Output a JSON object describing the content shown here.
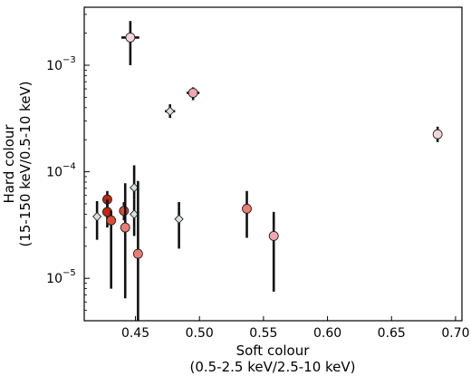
{
  "chart_data": {
    "type": "scatter",
    "title": "",
    "xlabel_lines": [
      "Soft colour",
      "(0.5-2.5 keV/2.5-10 keV)"
    ],
    "ylabel_lines": [
      "Hard colour",
      "(15-150 keV/0.5-10 keV)"
    ],
    "xlim": [
      0.41,
      0.705
    ],
    "ylim": [
      4e-06,
      0.0035
    ],
    "yscale": "log",
    "grid": false,
    "legend": "none",
    "x_ticks": [
      {
        "value": 0.45,
        "label": "0.45"
      },
      {
        "value": 0.5,
        "label": "0.50"
      },
      {
        "value": 0.55,
        "label": "0.55"
      },
      {
        "value": 0.6,
        "label": "0.60"
      },
      {
        "value": 0.65,
        "label": "0.65"
      },
      {
        "value": 0.7,
        "label": "0.70"
      }
    ],
    "y_ticks": [
      {
        "value": 1e-05,
        "label": "10",
        "exp": "−5"
      },
      {
        "value": 0.0001,
        "label": "10",
        "exp": "−4"
      },
      {
        "value": 0.001,
        "label": "10",
        "exp": "−3"
      }
    ],
    "colors": {
      "light_pink": "#f6d4dc",
      "pink": "#f1a7b1",
      "salmon": "#ec7b74",
      "red": "#df4b33",
      "dark_red": "#c4250f",
      "pale_green": "#d4e2dc",
      "error_bar": "#111111",
      "marker_edge": "#222222"
    },
    "points": [
      {
        "x": 0.446,
        "y": 0.00182,
        "ylo": 0.001,
        "yhi": 0.0026,
        "xlo": 0.439,
        "xhi": 0.453,
        "color": "light_pink",
        "marker": "circle"
      },
      {
        "x": 0.495,
        "y": 0.00055,
        "ylo": 0.00047,
        "yhi": 0.00062,
        "xlo": 0.49,
        "xhi": 0.5,
        "color": "pink",
        "marker": "circle"
      },
      {
        "x": 0.477,
        "y": 0.00037,
        "ylo": 0.00032,
        "yhi": 0.00043,
        "xlo": 0.473,
        "xhi": 0.481,
        "color": "pale_green",
        "marker": "diamond"
      },
      {
        "x": 0.686,
        "y": 0.000225,
        "ylo": 0.00019,
        "yhi": 0.000265,
        "color": "light_pink",
        "marker": "circle"
      },
      {
        "x": 0.428,
        "y": 5.5e-05,
        "ylo": 4.3e-05,
        "yhi": 6.6e-05,
        "color": "dark_red",
        "marker": "circle"
      },
      {
        "x": 0.428,
        "y": 4.2e-05,
        "ylo": 3e-05,
        "yhi": 5.5e-05,
        "color": "dark_red",
        "marker": "circle"
      },
      {
        "x": 0.431,
        "y": 3.5e-05,
        "ylo": 8e-06,
        "yhi": 4.3e-05,
        "color": "red",
        "marker": "circle"
      },
      {
        "x": 0.42,
        "y": 3.8e-05,
        "ylo": 2.3e-05,
        "yhi": 5.3e-05,
        "color": "pale_green",
        "marker": "diamond"
      },
      {
        "x": 0.441,
        "y": 4.3e-05,
        "ylo": 3.5e-05,
        "yhi": 5.2e-05,
        "color": "red",
        "marker": "circle"
      },
      {
        "x": 0.442,
        "y": 3e-05,
        "ylo": 6.5e-06,
        "yhi": 7.8e-05,
        "color": "salmon",
        "marker": "circle"
      },
      {
        "x": 0.449,
        "y": 7.1e-05,
        "ylo": 5.5e-05,
        "yhi": 0.000115,
        "color": "pale_green",
        "marker": "diamond"
      },
      {
        "x": 0.449,
        "y": 4e-05,
        "ylo": 2.5e-05,
        "yhi": 5.5e-05,
        "color": "pale_green",
        "marker": "diamond"
      },
      {
        "x": 0.452,
        "y": 1.7e-05,
        "ylo": 4e-06,
        "yhi": 8.2e-05,
        "color": "salmon",
        "marker": "circle"
      },
      {
        "x": 0.484,
        "y": 3.6e-05,
        "ylo": 1.9e-05,
        "yhi": 5.2e-05,
        "color": "pale_green",
        "marker": "diamond"
      },
      {
        "x": 0.537,
        "y": 4.5e-05,
        "ylo": 2.4e-05,
        "yhi": 6.6e-05,
        "color": "salmon",
        "marker": "circle"
      },
      {
        "x": 0.558,
        "y": 2.5e-05,
        "ylo": 7.5e-06,
        "yhi": 4.2e-05,
        "color": "pink",
        "marker": "circle"
      }
    ]
  }
}
